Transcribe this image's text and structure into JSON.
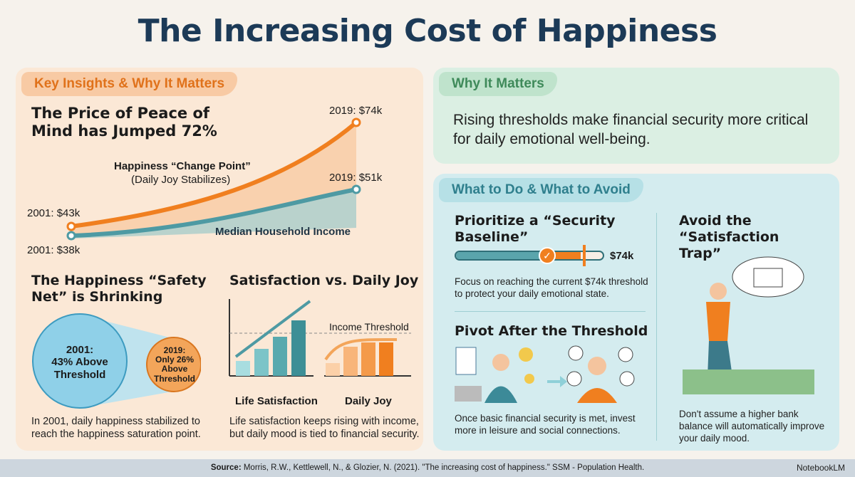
{
  "title": "The Increasing Cost of Happiness",
  "left": {
    "tab": "Key Insights & Why It Matters",
    "price_heading": "The Price of Peace of Mind has Jumped 72%",
    "change_point": "Happiness “Change Point”",
    "change_point_sub": "(Daily Joy Stabilizes)",
    "median_label": "Median Household Income",
    "labels": {
      "o2001": "2001: $43k",
      "o2019": "2019: $74k",
      "t2001": "2001: $38k",
      "t2019": "2019: $51k"
    },
    "safety_heading": "The Happiness “Safety Net” is Shrinking",
    "big_circle": [
      "2001:",
      "43% Above",
      "Threshold"
    ],
    "small_circle": [
      "2019:",
      "Only 26%",
      "Above",
      "Threshold"
    ],
    "safety_text": "In 2001, daily happiness stabilized to reach the happiness saturation point.",
    "sat_heading": "Satisfaction vs. Daily Joy",
    "income_threshold": "Income Threshold",
    "life_sat": "Life Satisfaction",
    "daily_joy": "Daily Joy",
    "dollar": "$",
    "sat_text": "Life satisfaction keeps rising with income, but daily mood is tied to financial security."
  },
  "why": {
    "tab": "Why It Matters",
    "text": "Rising thresholds make financial security more critical for daily emotional well-being."
  },
  "todo": {
    "tab": "What to Do & What to Avoid",
    "prioritize": "Prioritize a “Security Baseline”",
    "slider_value": "$74k",
    "slider_progress": 0.6,
    "prioritize_text": "Focus on reaching the current $74k threshold to protect your daily emotional state.",
    "pivot": "Pivot After the Threshold",
    "pivot_text": "Once basic financial security is met, invest more in leisure and social connections.",
    "avoid": "Avoid the “Satisfaction Trap”",
    "avoid_text": "Don't assume a higher bank balance will automatically improve your daily mood."
  },
  "footer": {
    "source_label": "Source:",
    "source": " Morris, R.W., Kettlewell, N., & Glozier, N. (2021). \"The increasing cost of happiness.\" SSM - Population Health.",
    "brand": "NotebookLM"
  },
  "colors": {
    "orange": "#f07f1f",
    "teal": "#4e9aa3",
    "navy": "#1c3a57"
  }
}
